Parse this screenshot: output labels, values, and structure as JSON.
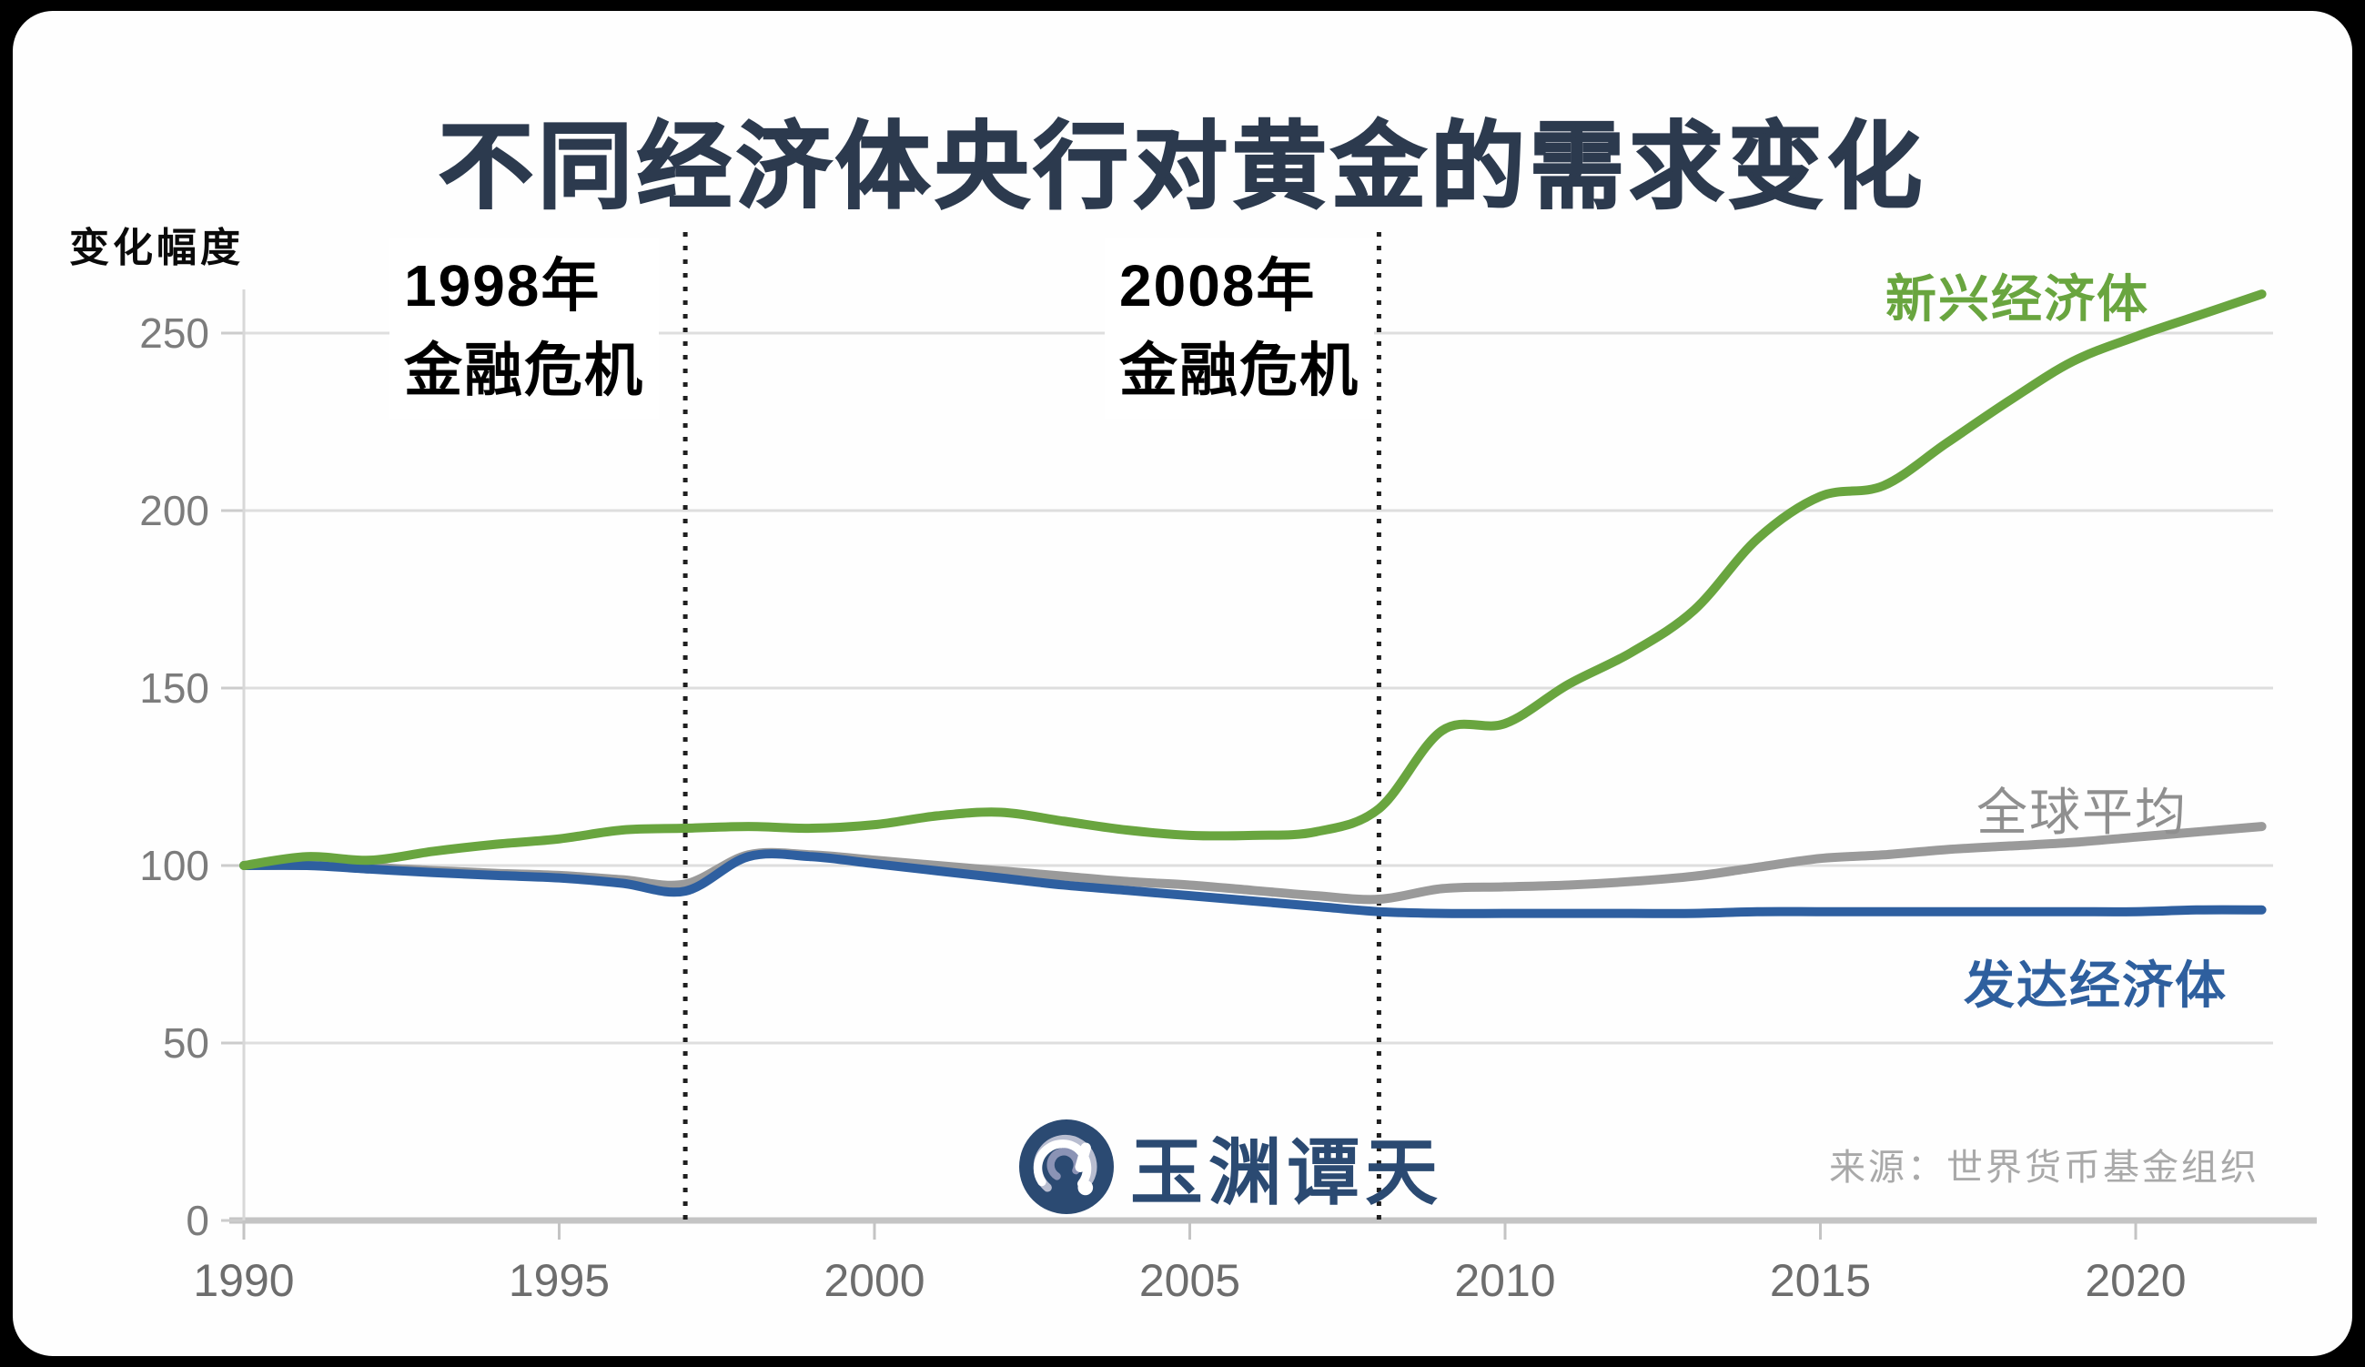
{
  "title": "不同经济体央行对黄金的需求变化",
  "y_axis_title": "变化幅度",
  "series_labels": {
    "emerging": "新兴经济体",
    "global": "全球平均",
    "developed": "发达经济体"
  },
  "logo_text": "玉渊谭天",
  "source_text": "来源：世界货币基金组织",
  "colors": {
    "title": "#2c3a4e",
    "emerging_line": "#69a53f",
    "global_line": "#9a9a9a",
    "developed_line": "#2e5fa0",
    "emerging_label": "#69a53f",
    "global_label": "#8f8f8f",
    "developed_label": "#2e5f9e",
    "logo": "#2b4a72",
    "source": "#a9a9a9",
    "gridline": "#dedede",
    "baseline": "#c4c4c4",
    "crisis_line": "#1f1f1f"
  },
  "chart_data": {
    "type": "line",
    "title": "不同经济体央行对黄金的需求变化",
    "ylabel": "变化幅度",
    "xlim": [
      1990,
      2022
    ],
    "ylim": [
      0,
      265
    ],
    "grid": "horizontal",
    "legend_position": "inline-labels",
    "x_ticks": [
      1990,
      1995,
      2000,
      2005,
      2010,
      2015,
      2020
    ],
    "y_ticks": [
      0,
      50,
      100,
      150,
      200,
      250
    ],
    "x": [
      1990,
      1991,
      1992,
      1993,
      1994,
      1995,
      1996,
      1997,
      1998,
      1999,
      2000,
      2001,
      2002,
      2003,
      2004,
      2005,
      2006,
      2007,
      2008,
      2009,
      2010,
      2011,
      2012,
      2013,
      2014,
      2015,
      2016,
      2017,
      2018,
      2019,
      2020,
      2021,
      2022
    ],
    "series": [
      {
        "name": "全球平均",
        "color": "#9a9a9a",
        "values": [
          100,
          100,
          99.5,
          98.6,
          97.8,
          97.2,
          96,
          94.8,
          103,
          103,
          101.5,
          100,
          98.5,
          97,
          95.5,
          94.5,
          93,
          91.5,
          90.5,
          93.5,
          94,
          94.5,
          95.5,
          97,
          99.5,
          102,
          103,
          104.5,
          105.5,
          106.5,
          108,
          109.5,
          111
        ]
      },
      {
        "name": "发达经济体",
        "color": "#2e5fa0",
        "values": [
          100,
          100,
          99,
          98,
          97.2,
          96.5,
          95,
          92.8,
          102.5,
          102.5,
          100.5,
          98.5,
          96.5,
          94.5,
          93,
          91.5,
          90,
          88.5,
          87,
          86.5,
          86.5,
          86.5,
          86.5,
          86.5,
          87,
          87,
          87,
          87,
          87,
          87,
          87,
          87.5,
          87.5
        ]
      },
      {
        "name": "新兴经济体",
        "color": "#69a53f",
        "values": [
          100,
          102.5,
          101.5,
          104,
          106,
          107.5,
          110,
          110.5,
          111,
          110.5,
          111.5,
          114,
          115,
          112.5,
          110,
          108.5,
          108.5,
          109.5,
          116,
          138,
          140,
          151,
          160,
          172,
          192,
          204,
          207,
          219,
          231,
          242,
          249,
          255,
          261
        ]
      }
    ],
    "crisis_lines": [
      {
        "year": 1997,
        "label1": "1998年",
        "label2": "金融危机"
      },
      {
        "year": 2008,
        "label1": "2008年",
        "label2": "金融危机"
      }
    ]
  }
}
